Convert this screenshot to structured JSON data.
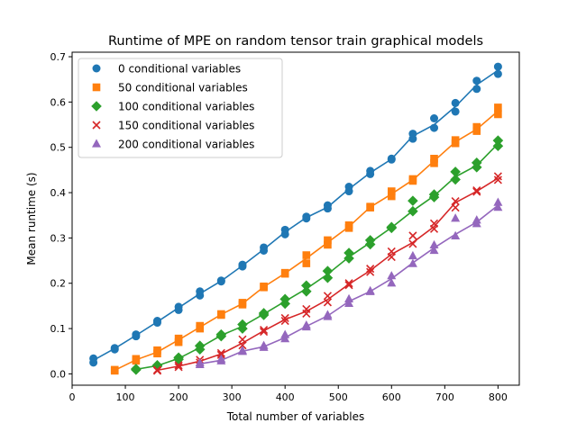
{
  "chart_data": {
    "type": "scatter",
    "title": "Runtime of MPE on random tensor train graphical models",
    "xlabel": "Total number of variables",
    "ylabel": "Mean runtime (s)",
    "xlim": [
      0,
      840
    ],
    "ylim": [
      -0.025,
      0.71
    ],
    "x_ticks": [
      0,
      100,
      200,
      300,
      400,
      500,
      600,
      700,
      800
    ],
    "y_ticks": [
      0.0,
      0.1,
      0.2,
      0.3,
      0.4,
      0.5,
      0.6,
      0.7
    ],
    "x_tick_labels": [
      "0",
      "100",
      "200",
      "300",
      "400",
      "500",
      "600",
      "700",
      "800"
    ],
    "y_tick_labels": [
      "0.0",
      "0.1",
      "0.2",
      "0.3",
      "0.4",
      "0.5",
      "0.6",
      "0.7"
    ],
    "grid": false,
    "legend_position": "top-left",
    "series": [
      {
        "name": "0 conditional variables",
        "color": "#1f77b4",
        "marker": "circle",
        "line": [
          [
            40,
            0.03
          ],
          [
            80,
            0.056
          ],
          [
            120,
            0.085
          ],
          [
            160,
            0.115
          ],
          [
            200,
            0.146
          ],
          [
            240,
            0.177
          ],
          [
            280,
            0.205
          ],
          [
            320,
            0.239
          ],
          [
            360,
            0.275
          ],
          [
            400,
            0.313
          ],
          [
            440,
            0.345
          ],
          [
            480,
            0.368
          ],
          [
            520,
            0.408
          ],
          [
            560,
            0.444
          ],
          [
            600,
            0.474
          ],
          [
            640,
            0.525
          ],
          [
            680,
            0.55
          ],
          [
            720,
            0.59
          ],
          [
            760,
            0.638
          ],
          [
            800,
            0.67
          ]
        ],
        "points": [
          [
            40,
            0.025
          ],
          [
            40,
            0.034
          ],
          [
            80,
            0.054
          ],
          [
            80,
            0.057
          ],
          [
            120,
            0.083
          ],
          [
            120,
            0.087
          ],
          [
            160,
            0.113
          ],
          [
            160,
            0.117
          ],
          [
            200,
            0.141
          ],
          [
            200,
            0.148
          ],
          [
            240,
            0.173
          ],
          [
            240,
            0.182
          ],
          [
            280,
            0.204
          ],
          [
            280,
            0.206
          ],
          [
            320,
            0.237
          ],
          [
            320,
            0.241
          ],
          [
            360,
            0.272
          ],
          [
            360,
            0.279
          ],
          [
            400,
            0.308
          ],
          [
            400,
            0.318
          ],
          [
            440,
            0.343
          ],
          [
            440,
            0.347
          ],
          [
            480,
            0.365
          ],
          [
            480,
            0.372
          ],
          [
            520,
            0.403
          ],
          [
            520,
            0.413
          ],
          [
            560,
            0.441
          ],
          [
            560,
            0.448
          ],
          [
            600,
            0.473
          ],
          [
            600,
            0.475
          ],
          [
            640,
            0.519
          ],
          [
            640,
            0.53
          ],
          [
            680,
            0.543
          ],
          [
            680,
            0.564
          ],
          [
            720,
            0.579
          ],
          [
            720,
            0.598
          ],
          [
            760,
            0.629
          ],
          [
            760,
            0.647
          ],
          [
            800,
            0.662
          ],
          [
            800,
            0.678
          ]
        ]
      },
      {
        "name": "50 conditional variables",
        "color": "#ff7f0e",
        "marker": "square",
        "line": [
          [
            80,
            0.008
          ],
          [
            120,
            0.031
          ],
          [
            160,
            0.048
          ],
          [
            200,
            0.075
          ],
          [
            240,
            0.103
          ],
          [
            280,
            0.131
          ],
          [
            320,
            0.155
          ],
          [
            360,
            0.192
          ],
          [
            400,
            0.222
          ],
          [
            440,
            0.255
          ],
          [
            480,
            0.29
          ],
          [
            520,
            0.325
          ],
          [
            560,
            0.368
          ],
          [
            600,
            0.397
          ],
          [
            640,
            0.428
          ],
          [
            680,
            0.47
          ],
          [
            720,
            0.512
          ],
          [
            760,
            0.54
          ],
          [
            800,
            0.58
          ]
        ],
        "points": [
          [
            80,
            0.007
          ],
          [
            80,
            0.009
          ],
          [
            120,
            0.029
          ],
          [
            120,
            0.033
          ],
          [
            160,
            0.045
          ],
          [
            160,
            0.052
          ],
          [
            200,
            0.07
          ],
          [
            200,
            0.078
          ],
          [
            240,
            0.1
          ],
          [
            240,
            0.106
          ],
          [
            280,
            0.13
          ],
          [
            280,
            0.132
          ],
          [
            320,
            0.153
          ],
          [
            320,
            0.157
          ],
          [
            360,
            0.191
          ],
          [
            360,
            0.193
          ],
          [
            400,
            0.221
          ],
          [
            400,
            0.223
          ],
          [
            440,
            0.244
          ],
          [
            440,
            0.262
          ],
          [
            480,
            0.285
          ],
          [
            480,
            0.295
          ],
          [
            520,
            0.322
          ],
          [
            520,
            0.328
          ],
          [
            560,
            0.367
          ],
          [
            560,
            0.369
          ],
          [
            600,
            0.392
          ],
          [
            600,
            0.403
          ],
          [
            640,
            0.426
          ],
          [
            640,
            0.43
          ],
          [
            680,
            0.465
          ],
          [
            680,
            0.475
          ],
          [
            720,
            0.509
          ],
          [
            720,
            0.516
          ],
          [
            760,
            0.536
          ],
          [
            760,
            0.545
          ],
          [
            800,
            0.573
          ],
          [
            800,
            0.588
          ]
        ]
      },
      {
        "name": "100 conditional variables",
        "color": "#2ca02c",
        "marker": "diamond",
        "line": [
          [
            120,
            0.01
          ],
          [
            160,
            0.018
          ],
          [
            200,
            0.034
          ],
          [
            240,
            0.058
          ],
          [
            280,
            0.085
          ],
          [
            320,
            0.105
          ],
          [
            360,
            0.132
          ],
          [
            400,
            0.16
          ],
          [
            440,
            0.188
          ],
          [
            480,
            0.22
          ],
          [
            520,
            0.258
          ],
          [
            560,
            0.29
          ],
          [
            600,
            0.323
          ],
          [
            640,
            0.36
          ],
          [
            680,
            0.393
          ],
          [
            720,
            0.435
          ],
          [
            760,
            0.46
          ],
          [
            800,
            0.508
          ]
        ],
        "points": [
          [
            120,
            0.009
          ],
          [
            120,
            0.011
          ],
          [
            160,
            0.017
          ],
          [
            160,
            0.019
          ],
          [
            200,
            0.032
          ],
          [
            200,
            0.036
          ],
          [
            240,
            0.054
          ],
          [
            240,
            0.062
          ],
          [
            280,
            0.083
          ],
          [
            280,
            0.087
          ],
          [
            320,
            0.1
          ],
          [
            320,
            0.109
          ],
          [
            360,
            0.13
          ],
          [
            360,
            0.134
          ],
          [
            400,
            0.155
          ],
          [
            400,
            0.165
          ],
          [
            440,
            0.182
          ],
          [
            440,
            0.195
          ],
          [
            480,
            0.212
          ],
          [
            480,
            0.227
          ],
          [
            520,
            0.255
          ],
          [
            520,
            0.267
          ],
          [
            560,
            0.286
          ],
          [
            560,
            0.295
          ],
          [
            600,
            0.322
          ],
          [
            600,
            0.324
          ],
          [
            640,
            0.359
          ],
          [
            640,
            0.382
          ],
          [
            680,
            0.39
          ],
          [
            680,
            0.396
          ],
          [
            720,
            0.429
          ],
          [
            720,
            0.446
          ],
          [
            760,
            0.456
          ],
          [
            760,
            0.466
          ],
          [
            800,
            0.503
          ],
          [
            800,
            0.515
          ]
        ]
      },
      {
        "name": "150 conditional variables",
        "color": "#d62728",
        "marker": "x",
        "line": [
          [
            160,
            0.008
          ],
          [
            200,
            0.017
          ],
          [
            240,
            0.028
          ],
          [
            280,
            0.044
          ],
          [
            320,
            0.068
          ],
          [
            360,
            0.095
          ],
          [
            400,
            0.12
          ],
          [
            440,
            0.138
          ],
          [
            480,
            0.164
          ],
          [
            520,
            0.198
          ],
          [
            560,
            0.228
          ],
          [
            600,
            0.264
          ],
          [
            640,
            0.29
          ],
          [
            680,
            0.325
          ],
          [
            720,
            0.378
          ],
          [
            760,
            0.403
          ],
          [
            800,
            0.432
          ]
        ],
        "points": [
          [
            160,
            0.007
          ],
          [
            160,
            0.009
          ],
          [
            200,
            0.015
          ],
          [
            200,
            0.019
          ],
          [
            240,
            0.025
          ],
          [
            240,
            0.031
          ],
          [
            280,
            0.042
          ],
          [
            280,
            0.046
          ],
          [
            320,
            0.063
          ],
          [
            320,
            0.076
          ],
          [
            360,
            0.093
          ],
          [
            360,
            0.097
          ],
          [
            400,
            0.117
          ],
          [
            400,
            0.123
          ],
          [
            440,
            0.133
          ],
          [
            440,
            0.143
          ],
          [
            480,
            0.158
          ],
          [
            480,
            0.172
          ],
          [
            520,
            0.196
          ],
          [
            520,
            0.2
          ],
          [
            560,
            0.225
          ],
          [
            560,
            0.232
          ],
          [
            600,
            0.258
          ],
          [
            600,
            0.27
          ],
          [
            640,
            0.287
          ],
          [
            640,
            0.305
          ],
          [
            680,
            0.32
          ],
          [
            680,
            0.332
          ],
          [
            720,
            0.367
          ],
          [
            720,
            0.381
          ],
          [
            760,
            0.402
          ],
          [
            760,
            0.405
          ],
          [
            800,
            0.428
          ],
          [
            800,
            0.436
          ]
        ]
      },
      {
        "name": "200 conditional variables",
        "color": "#9467bd",
        "marker": "triangle",
        "line": [
          [
            240,
            0.022
          ],
          [
            280,
            0.03
          ],
          [
            320,
            0.05
          ],
          [
            360,
            0.06
          ],
          [
            400,
            0.08
          ],
          [
            440,
            0.105
          ],
          [
            480,
            0.128
          ],
          [
            520,
            0.16
          ],
          [
            560,
            0.182
          ],
          [
            600,
            0.21
          ],
          [
            640,
            0.245
          ],
          [
            680,
            0.278
          ],
          [
            720,
            0.308
          ],
          [
            760,
            0.335
          ],
          [
            800,
            0.372
          ]
        ],
        "points": [
          [
            240,
            0.02
          ],
          [
            240,
            0.024
          ],
          [
            280,
            0.028
          ],
          [
            280,
            0.032
          ],
          [
            320,
            0.049
          ],
          [
            320,
            0.051
          ],
          [
            360,
            0.058
          ],
          [
            360,
            0.062
          ],
          [
            400,
            0.077
          ],
          [
            400,
            0.086
          ],
          [
            440,
            0.103
          ],
          [
            440,
            0.107
          ],
          [
            480,
            0.126
          ],
          [
            480,
            0.13
          ],
          [
            520,
            0.155
          ],
          [
            520,
            0.165
          ],
          [
            560,
            0.181
          ],
          [
            560,
            0.183
          ],
          [
            600,
            0.2
          ],
          [
            600,
            0.216
          ],
          [
            640,
            0.243
          ],
          [
            640,
            0.26
          ],
          [
            680,
            0.272
          ],
          [
            680,
            0.284
          ],
          [
            720,
            0.304
          ],
          [
            720,
            0.343
          ],
          [
            760,
            0.331
          ],
          [
            760,
            0.339
          ],
          [
            800,
            0.367
          ],
          [
            800,
            0.378
          ]
        ]
      }
    ]
  }
}
